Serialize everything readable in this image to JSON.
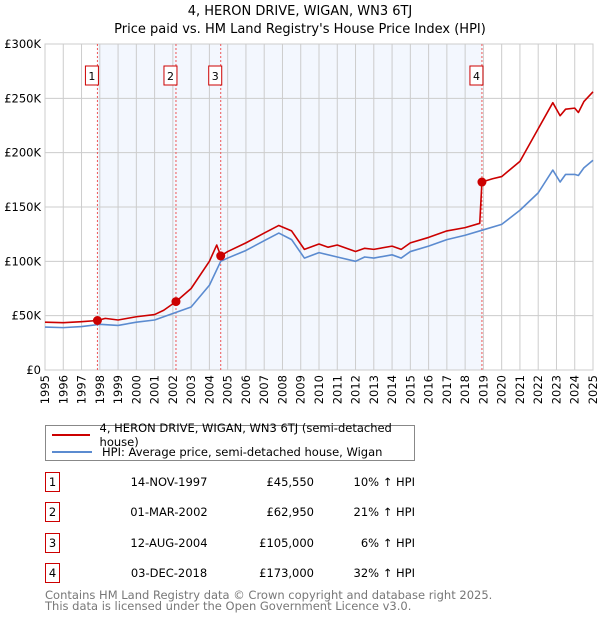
{
  "chart_data": {
    "type": "line",
    "title": "4, HERON DRIVE, WIGAN, WN3 6TJ",
    "subtitle": "Price paid vs. HM Land Registry's House Price Index (HPI)",
    "xlim": [
      1995,
      2025
    ],
    "ylim": [
      0,
      300000
    ],
    "y_ticks": [
      {
        "v": 0,
        "label": "£0"
      },
      {
        "v": 50000,
        "label": "£50K"
      },
      {
        "v": 100000,
        "label": "£100K"
      },
      {
        "v": 150000,
        "label": "£150K"
      },
      {
        "v": 200000,
        "label": "£200K"
      },
      {
        "v": 250000,
        "label": "£250K"
      },
      {
        "v": 300000,
        "label": "£300K"
      }
    ],
    "x_ticks": [
      "1995",
      "1996",
      "1997",
      "1998",
      "1999",
      "2000",
      "2001",
      "2002",
      "2003",
      "2004",
      "2005",
      "2006",
      "2007",
      "2008",
      "2009",
      "2010",
      "2011",
      "2012",
      "2013",
      "2014",
      "2015",
      "2016",
      "2017",
      "2018",
      "2019",
      "2020",
      "2021",
      "2022",
      "2023",
      "2024",
      "2025"
    ],
    "grid": true,
    "series": [
      {
        "name": "4, HERON DRIVE, WIGAN, WN3 6TJ (semi-detached house)",
        "color": "#cc0000",
        "x": [
          1995,
          1996,
          1997,
          1997.87,
          1998.3,
          1999,
          1999.5,
          2000,
          2001,
          2001.5,
          2002.17,
          2003,
          2004,
          2004.4,
          2004.62,
          2005,
          2006,
          2007,
          2007.8,
          2008.5,
          2009.2,
          2010,
          2010.5,
          2011,
          2012,
          2012.5,
          2013,
          2014,
          2014.5,
          2015,
          2016,
          2017,
          2018,
          2018.8,
          2018.92,
          2019.5,
          2020,
          2021,
          2022,
          2022.8,
          2023.2,
          2023.5,
          2024,
          2024.2,
          2024.5,
          2025
        ],
        "y": [
          44000,
          43500,
          44500,
          45550,
          47500,
          46000,
          47500,
          49000,
          51000,
          55000,
          62950,
          75000,
          100000,
          115000,
          105000,
          109000,
          117000,
          126000,
          133000,
          128000,
          111000,
          116000,
          113000,
          115000,
          109000,
          112000,
          111000,
          114000,
          111000,
          117000,
          122000,
          128000,
          131000,
          135000,
          173000,
          176000,
          178000,
          192000,
          222000,
          246000,
          234000,
          240000,
          241000,
          237000,
          247000,
          256000
        ]
      },
      {
        "name": "HPI: Average price, semi-detached house, Wigan",
        "color": "#5b8bd0",
        "x": [
          1995,
          1996,
          1997,
          1998,
          1999,
          2000,
          2001,
          2002,
          2003,
          2004,
          2004.62,
          2005,
          2006,
          2007,
          2007.8,
          2008.5,
          2009.2,
          2010,
          2011,
          2012,
          2012.5,
          2013,
          2014,
          2014.5,
          2015,
          2016,
          2017,
          2018,
          2019,
          2020,
          2021,
          2022,
          2022.8,
          2023.2,
          2023.5,
          2024,
          2024.2,
          2024.5,
          2025
        ],
        "y": [
          39500,
          39000,
          40000,
          42000,
          41000,
          44000,
          46000,
          52000,
          58000,
          78000,
          100000,
          103000,
          110000,
          119000,
          126000,
          120000,
          103000,
          108000,
          104000,
          100000,
          104000,
          103000,
          106000,
          103000,
          109000,
          114000,
          120000,
          124000,
          129000,
          134000,
          147000,
          163000,
          184000,
          173000,
          180000,
          180000,
          179000,
          186000,
          193000
        ]
      }
    ],
    "sales": [
      {
        "label": "1",
        "x": 1997.87,
        "y": 45550
      },
      {
        "label": "2",
        "x": 2002.17,
        "y": 62950
      },
      {
        "label": "3",
        "x": 2004.62,
        "y": 105000
      },
      {
        "label": "4",
        "x": 2018.92,
        "y": 173000
      }
    ],
    "legend_placement": "bottom"
  },
  "table": [
    {
      "num": "1",
      "date": "14-NOV-1997",
      "price": "£45,550",
      "hpi": "10% ↑ HPI"
    },
    {
      "num": "2",
      "date": "01-MAR-2002",
      "price": "£62,950",
      "hpi": "21% ↑ HPI"
    },
    {
      "num": "3",
      "date": "12-AUG-2004",
      "price": "£105,000",
      "hpi": "6% ↑ HPI"
    },
    {
      "num": "4",
      "date": "03-DEC-2018",
      "price": "£173,000",
      "hpi": "32% ↑ HPI"
    }
  ],
  "footer": {
    "line1": "Contains HM Land Registry data © Crown copyright and database right 2025.",
    "line2": "This data is licensed under the Open Government Licence v3.0."
  }
}
